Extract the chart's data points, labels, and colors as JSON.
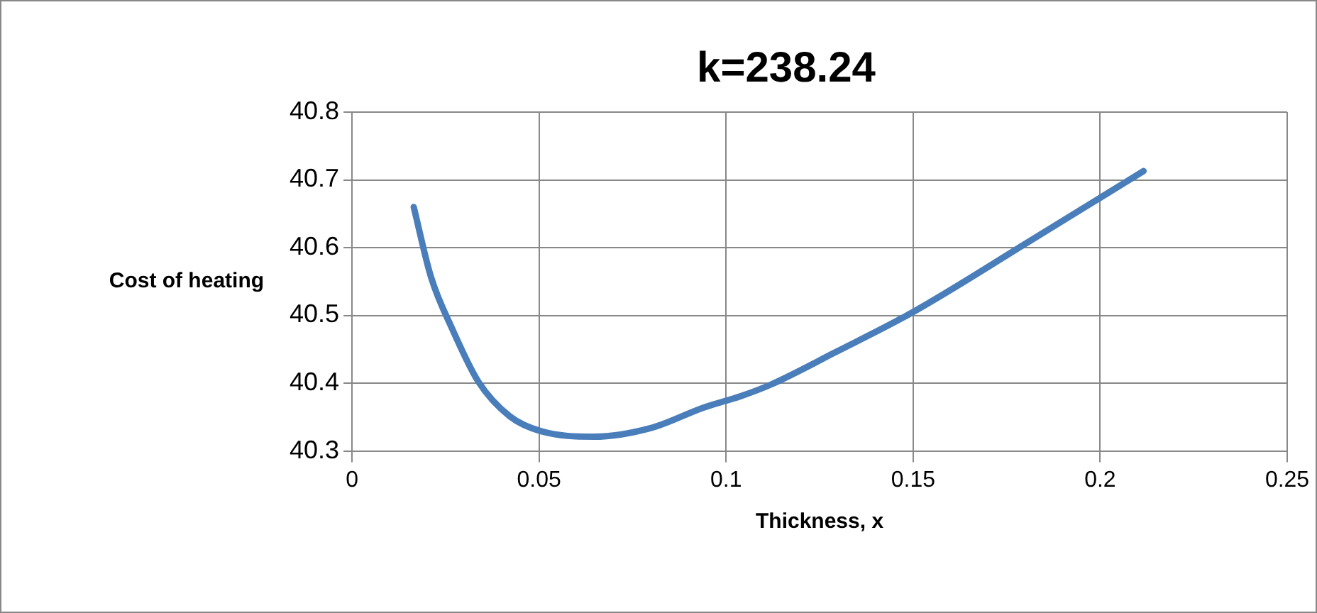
{
  "chart_data": {
    "type": "line",
    "title": "k=238.24",
    "xlabel": "Thickness, x",
    "ylabel": "Cost of heating",
    "x": [
      0.0165,
      0.0211,
      0.0268,
      0.0338,
      0.0422,
      0.0506,
      0.0646,
      0.08,
      0.094,
      0.104,
      0.112,
      0.129,
      0.15,
      0.181,
      0.2116
    ],
    "series": [
      {
        "color": "#4a7ebb",
        "values": [
          40.66,
          40.557,
          40.48,
          40.402,
          40.351,
          40.329,
          40.321,
          40.334,
          40.364,
          40.381,
          40.398,
          40.445,
          40.505,
          40.609,
          40.713
        ]
      }
    ],
    "xlim": [
      0,
      0.25
    ],
    "xticks": [
      0,
      0.05,
      0.1,
      0.15,
      0.2,
      0.25
    ],
    "ylim": [
      40.3,
      40.8
    ],
    "yticks": [
      40.3,
      40.4,
      40.5,
      40.6,
      40.7,
      40.8
    ],
    "grid": true,
    "legend": false,
    "marker": "none",
    "line_style": "solid"
  }
}
